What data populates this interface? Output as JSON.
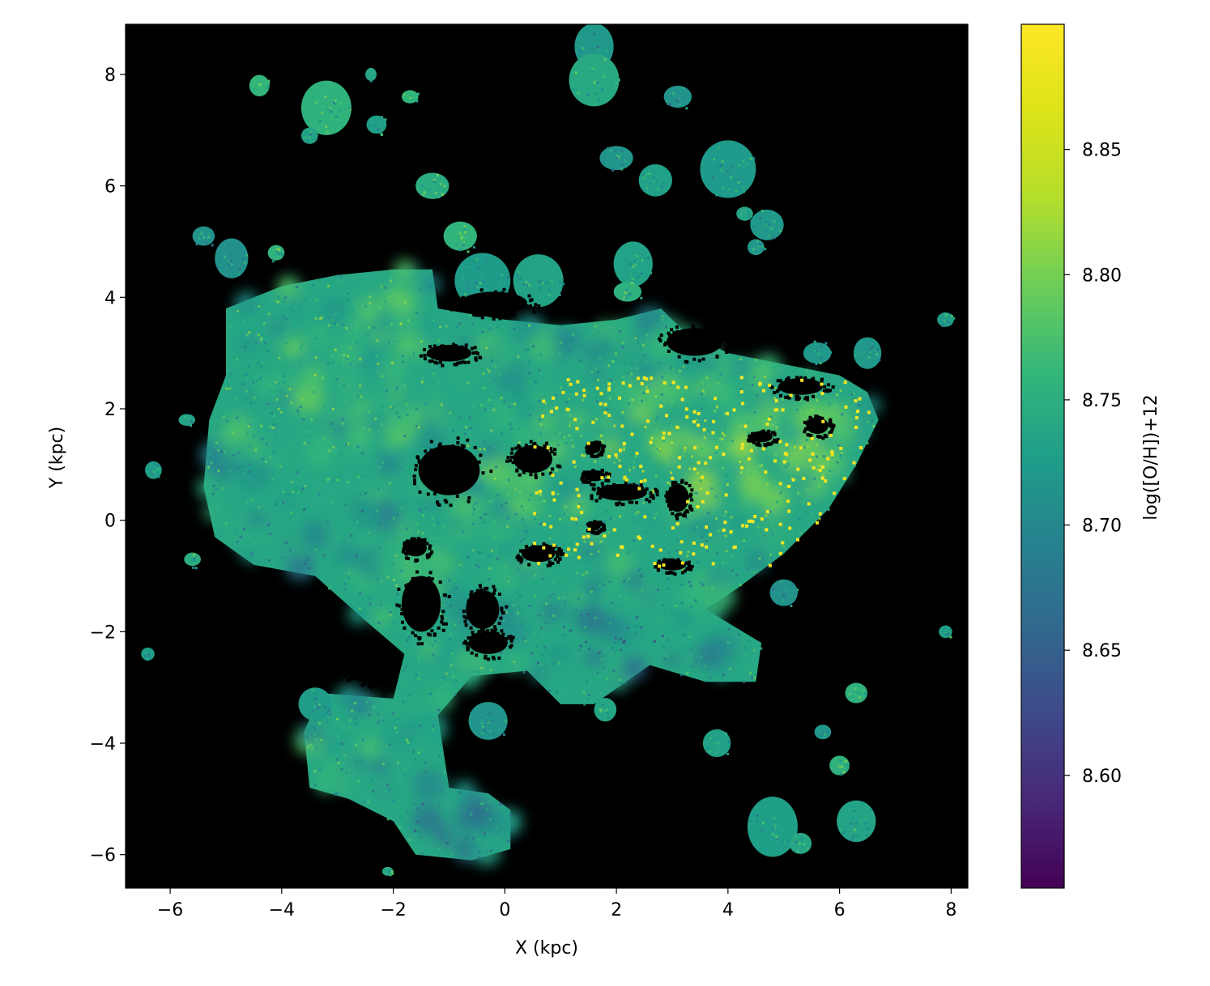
{
  "chart_data": {
    "type": "heatmap",
    "xlabel": "X (kpc)",
    "ylabel": "Y (kpc)",
    "xlim": [
      -6.8,
      8.3
    ],
    "ylim": [
      -6.6,
      8.9
    ],
    "x_ticks": [
      -6,
      -4,
      -2,
      0,
      2,
      4,
      6,
      8
    ],
    "x_tick_labels": [
      "−6",
      "−4",
      "−2",
      "0",
      "2",
      "4",
      "6",
      "8"
    ],
    "y_ticks": [
      -6,
      -4,
      -2,
      0,
      2,
      4,
      6,
      8
    ],
    "y_tick_labels": [
      "−6",
      "−4",
      "−2",
      "0",
      "2",
      "4",
      "6",
      "8"
    ],
    "background_color": "#000000",
    "colorbar": {
      "label": "log([O/H])+12",
      "colormap": "viridis",
      "vmin": 8.555,
      "vmax": 8.9,
      "ticks": [
        8.6,
        8.65,
        8.7,
        8.75,
        8.8,
        8.85
      ],
      "tick_labels": [
        "8.60",
        "8.65",
        "8.70",
        "8.75",
        "8.80",
        "8.85"
      ]
    },
    "description_regions": [
      {
        "x": 0.0,
        "y": 0.0,
        "value": 8.72
      },
      {
        "x": 2.5,
        "y": 1.0,
        "value": 8.85
      },
      {
        "x": -3.0,
        "y": 2.5,
        "value": 8.77
      },
      {
        "x": -1.0,
        "y": -5.5,
        "value": 8.67
      },
      {
        "x": 2.0,
        "y": -2.2,
        "value": 8.66
      }
    ]
  }
}
